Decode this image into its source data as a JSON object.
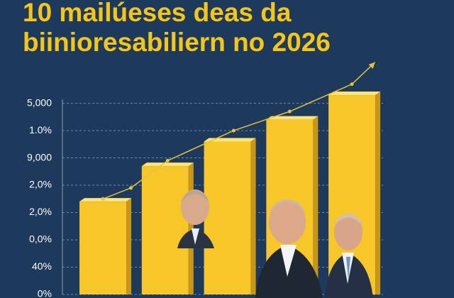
{
  "chart_data": {
    "type": "bar",
    "title": [
      "10 mailúeses deas da",
      "biinioresabiliern no 2026"
    ],
    "categories": [
      null,
      null,
      null,
      null,
      null
    ],
    "values": [
      3.4,
      4.7,
      5.6,
      6.4,
      7.3
    ],
    "color": "#f7c628",
    "trend": {
      "x": [
        0,
        0.45,
        1.04,
        2.1,
        3.0,
        4.0,
        4.37
      ],
      "values": [
        3.5,
        3.9,
        4.9,
        6.0,
        6.7,
        7.7,
        8.5
      ],
      "color": "#e8c23a"
    },
    "xlim": [
      -0.65,
      4.5
    ],
    "ylim": [
      0,
      8.6
    ],
    "yticks": [
      {
        "value": 7,
        "label": "5,000"
      },
      {
        "value": 6,
        "label": "1.0%"
      },
      {
        "value": 5,
        "label": "9,000"
      },
      {
        "value": 4,
        "label": "2,0%"
      },
      {
        "value": 3,
        "label": "2,0%"
      },
      {
        "value": 2,
        "label": "0,0%"
      },
      {
        "value": 1,
        "label": "40%"
      },
      {
        "value": 0,
        "label": "0%"
      }
    ],
    "grid": true
  }
}
